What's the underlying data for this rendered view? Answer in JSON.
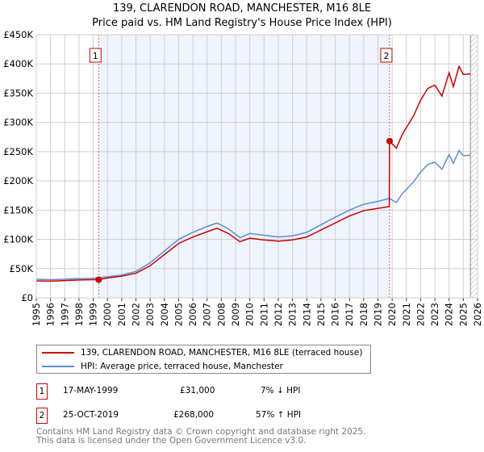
{
  "title": [
    "139, CLARENDON ROAD, MANCHESTER, M16 8LE",
    "Price paid vs. HM Land Registry's House Price Index (HPI)"
  ],
  "chart_data": {
    "type": "line",
    "xlim": [
      1995,
      2026
    ],
    "ylim": [
      0,
      450000
    ],
    "x_ticks": [
      "1995",
      "1996",
      "1997",
      "1998",
      "1999",
      "2000",
      "2001",
      "2002",
      "2003",
      "2004",
      "2005",
      "2006",
      "2007",
      "2008",
      "2009",
      "2010",
      "2011",
      "2012",
      "2013",
      "2014",
      "2015",
      "2016",
      "2017",
      "2018",
      "2019",
      "2020",
      "2021",
      "2022",
      "2023",
      "2024",
      "2025",
      "2026"
    ],
    "y_ticks": [
      {
        "v": 0,
        "label": "£0"
      },
      {
        "v": 50000,
        "label": "£50K"
      },
      {
        "v": 100000,
        "label": "£100K"
      },
      {
        "v": 150000,
        "label": "£150K"
      },
      {
        "v": 200000,
        "label": "£200K"
      },
      {
        "v": 250000,
        "label": "£250K"
      },
      {
        "v": 300000,
        "label": "£300K"
      },
      {
        "v": 350000,
        "label": "£350K"
      },
      {
        "v": 400000,
        "label": "£400K"
      },
      {
        "v": 450000,
        "label": "£450K"
      }
    ],
    "series": [
      {
        "name": "139, CLARENDON ROAD, MANCHESTER, M16 8LE (terraced house)",
        "color": "#cc0000",
        "points": [
          [
            1995,
            29000
          ],
          [
            1996,
            28500
          ],
          [
            1997,
            29500
          ],
          [
            1998,
            30500
          ],
          [
            1999,
            31000
          ],
          [
            1999.38,
            31000
          ],
          [
            2000,
            34000
          ],
          [
            2001,
            37000
          ],
          [
            2002,
            42000
          ],
          [
            2003,
            55000
          ],
          [
            2004,
            74000
          ],
          [
            2005,
            93000
          ],
          [
            2006,
            104000
          ],
          [
            2007,
            113000
          ],
          [
            2007.7,
            119000
          ],
          [
            2008.5,
            110000
          ],
          [
            2009.3,
            96000
          ],
          [
            2010,
            102000
          ],
          [
            2011,
            99000
          ],
          [
            2012,
            97000
          ],
          [
            2013,
            99000
          ],
          [
            2014,
            104000
          ],
          [
            2015,
            116000
          ],
          [
            2016,
            128000
          ],
          [
            2017,
            140000
          ],
          [
            2018,
            149000
          ],
          [
            2019,
            153000
          ],
          [
            2019.8,
            156000
          ],
          [
            2019.82,
            268000
          ],
          [
            2020.3,
            256000
          ],
          [
            2020.7,
            279000
          ],
          [
            2021.5,
            311000
          ],
          [
            2022,
            338000
          ],
          [
            2022.5,
            358000
          ],
          [
            2023,
            364000
          ],
          [
            2023.5,
            345000
          ],
          [
            2024,
            385000
          ],
          [
            2024.3,
            361000
          ],
          [
            2024.7,
            396000
          ],
          [
            2025,
            382000
          ],
          [
            2025.5,
            383000
          ]
        ]
      },
      {
        "name": "HPI: Average price, terraced house, Manchester",
        "color": "#5b8fd0",
        "points": [
          [
            1995,
            32000
          ],
          [
            1996,
            31000
          ],
          [
            1997,
            32000
          ],
          [
            1998,
            33000
          ],
          [
            1999,
            33500
          ],
          [
            2000,
            36000
          ],
          [
            2001,
            39000
          ],
          [
            2002,
            45000
          ],
          [
            2003,
            60000
          ],
          [
            2004,
            80000
          ],
          [
            2005,
            100000
          ],
          [
            2006,
            112000
          ],
          [
            2007,
            122000
          ],
          [
            2007.7,
            128000
          ],
          [
            2008.5,
            118000
          ],
          [
            2009.3,
            103000
          ],
          [
            2010,
            110000
          ],
          [
            2011,
            107000
          ],
          [
            2012,
            104000
          ],
          [
            2013,
            106000
          ],
          [
            2014,
            112000
          ],
          [
            2015,
            125000
          ],
          [
            2016,
            138000
          ],
          [
            2017,
            150000
          ],
          [
            2018,
            160000
          ],
          [
            2019,
            165000
          ],
          [
            2019.8,
            170000
          ],
          [
            2020.3,
            163000
          ],
          [
            2020.7,
            178000
          ],
          [
            2021.5,
            198000
          ],
          [
            2022,
            215000
          ],
          [
            2022.5,
            228000
          ],
          [
            2023,
            232000
          ],
          [
            2023.5,
            220000
          ],
          [
            2024,
            245000
          ],
          [
            2024.3,
            230000
          ],
          [
            2024.7,
            252000
          ],
          [
            2025,
            243000
          ],
          [
            2025.5,
            244000
          ]
        ]
      }
    ],
    "sales": [
      {
        "label": "1",
        "x": 1999.38,
        "y": 31000
      },
      {
        "label": "2",
        "x": 2019.82,
        "y": 268000
      }
    ],
    "shaded_range": [
      1999.38,
      2019.82
    ],
    "hatched_from": 2025.5
  },
  "legend": [
    "139, CLARENDON ROAD, MANCHESTER, M16 8LE (terraced house)",
    "HPI: Average price, terraced house, Manchester"
  ],
  "transactions": [
    {
      "num": "1",
      "date": "17-MAY-1999",
      "price": "£31,000",
      "hpi": "7% ↓ HPI"
    },
    {
      "num": "2",
      "date": "25-OCT-2019",
      "price": "£268,000",
      "hpi": "57% ↑ HPI"
    }
  ],
  "footer": [
    "Contains HM Land Registry data © Crown copyright and database right 2025.",
    "This data is licensed under the Open Government Licence v3.0."
  ]
}
